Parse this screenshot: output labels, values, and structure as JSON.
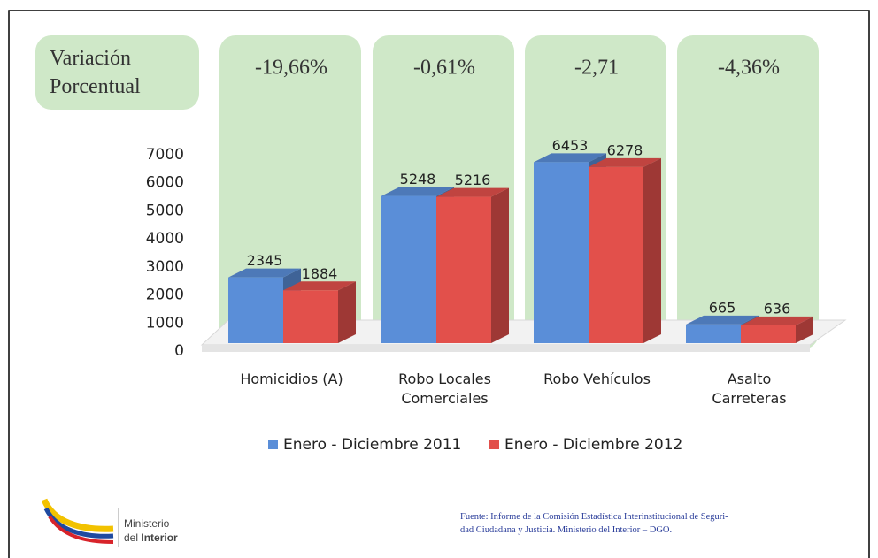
{
  "chart_data": {
    "type": "bar3d",
    "header": "Variación Porcentual",
    "annotations": [
      "-19,66%",
      "-0,61%",
      "-2,71",
      "-4,36%"
    ],
    "categories": [
      "Homicidios (A)",
      "Robo Locales Comerciales",
      "Robo Vehículos",
      "Asalto Carreteras"
    ],
    "series": [
      {
        "name": "Enero - Diciembre 2011",
        "color": "#5a8ed8",
        "values": [
          2345,
          5248,
          6453,
          665
        ]
      },
      {
        "name": "Enero - Diciembre 2012",
        "color": "#e2504b",
        "values": [
          1884,
          5216,
          6278,
          636
        ]
      }
    ],
    "ylim": [
      0,
      7000
    ],
    "yticks": [
      0,
      1000,
      2000,
      3000,
      4000,
      5000,
      6000,
      7000
    ],
    "grid": false
  },
  "footer": {
    "logo_line1": "Ministerio",
    "logo_line2_a": "del",
    "logo_line2_b": "Interior",
    "source": [
      "Fuente: Informe de la Comisión Estadística Interinstitucional de Seguri-",
      "dad Ciudadana y Justicia. Ministerio del Interior – DGO."
    ]
  }
}
